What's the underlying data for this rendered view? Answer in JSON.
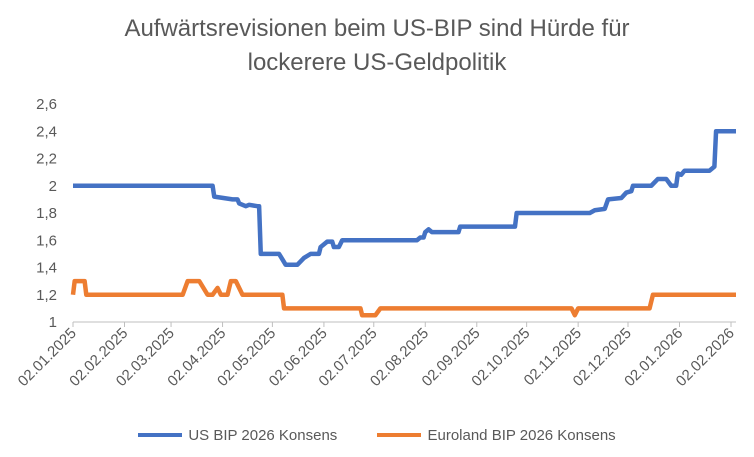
{
  "chart_data": {
    "type": "line",
    "title_lines": [
      "Aufwärtsrevisionen beim US-BIP sind Hürde für",
      "lockerere US-Geldpolitik"
    ],
    "xlabel": "",
    "ylabel": "",
    "x_range": [
      "2025-01-02",
      "2026-02-05"
    ],
    "ylim": [
      1,
      2.6
    ],
    "y_ticks": [
      1,
      1.2,
      1.4,
      1.6,
      1.8,
      2,
      2.2,
      2.4,
      2.6
    ],
    "y_tick_labels": [
      "1",
      "1,2",
      "1,4",
      "1,6",
      "1,8",
      "2",
      "2,2",
      "2,4",
      "2,6"
    ],
    "x_ticks": [
      "2025-01-02",
      "2025-02-02",
      "2025-03-02",
      "2025-04-02",
      "2025-05-02",
      "2025-06-02",
      "2025-07-02",
      "2025-08-02",
      "2025-09-02",
      "2025-10-02",
      "2025-11-02",
      "2025-12-02",
      "2026-01-02",
      "2026-02-02"
    ],
    "x_tick_labels": [
      "02.01.2025",
      "02.02.2025",
      "02.03.2025",
      "02.04.2025",
      "02.05.2025",
      "02.06.2025",
      "02.07.2025",
      "02.08.2025",
      "02.09.2025",
      "02.10.2025",
      "02.11.2025",
      "02.12.2025",
      "02.01.2026",
      "02.02.2026"
    ],
    "grid": false,
    "legend_position": "bottom",
    "series": [
      {
        "name": "US BIP 2026 Konsens",
        "color": "#4472C4",
        "points": [
          [
            "2025-01-02",
            2.0
          ],
          [
            "2025-03-27",
            2.0
          ],
          [
            "2025-03-28",
            1.92
          ],
          [
            "2025-04-08",
            1.9
          ],
          [
            "2025-04-11",
            1.9
          ],
          [
            "2025-04-12",
            1.87
          ],
          [
            "2025-04-16",
            1.85
          ],
          [
            "2025-04-18",
            1.86
          ],
          [
            "2025-04-23",
            1.85
          ],
          [
            "2025-04-24",
            1.85
          ],
          [
            "2025-04-25",
            1.5
          ],
          [
            "2025-05-06",
            1.5
          ],
          [
            "2025-05-08",
            1.46
          ],
          [
            "2025-05-10",
            1.42
          ],
          [
            "2025-05-17",
            1.42
          ],
          [
            "2025-05-21",
            1.47
          ],
          [
            "2025-05-25",
            1.5
          ],
          [
            "2025-05-30",
            1.5
          ],
          [
            "2025-05-31",
            1.55
          ],
          [
            "2025-06-04",
            1.59
          ],
          [
            "2025-06-07",
            1.59
          ],
          [
            "2025-06-08",
            1.55
          ],
          [
            "2025-06-11",
            1.55
          ],
          [
            "2025-06-13",
            1.6
          ],
          [
            "2025-07-28",
            1.6
          ],
          [
            "2025-07-30",
            1.62
          ],
          [
            "2025-08-01",
            1.62
          ],
          [
            "2025-08-02",
            1.66
          ],
          [
            "2025-08-04",
            1.68
          ],
          [
            "2025-08-06",
            1.66
          ],
          [
            "2025-08-22",
            1.66
          ],
          [
            "2025-08-23",
            1.7
          ],
          [
            "2025-09-25",
            1.7
          ],
          [
            "2025-09-26",
            1.8
          ],
          [
            "2025-11-09",
            1.8
          ],
          [
            "2025-11-12",
            1.82
          ],
          [
            "2025-11-18",
            1.83
          ],
          [
            "2025-11-20",
            1.9
          ],
          [
            "2025-11-28",
            1.91
          ],
          [
            "2025-12-01",
            1.95
          ],
          [
            "2025-12-04",
            1.96
          ],
          [
            "2025-12-05",
            2.0
          ],
          [
            "2025-12-16",
            2.0
          ],
          [
            "2025-12-20",
            2.05
          ],
          [
            "2025-12-25",
            2.05
          ],
          [
            "2025-12-28",
            2.0
          ],
          [
            "2025-12-31",
            2.0
          ],
          [
            "2026-01-01",
            2.09
          ],
          [
            "2026-01-03",
            2.08
          ],
          [
            "2026-01-05",
            2.11
          ],
          [
            "2026-01-20",
            2.11
          ],
          [
            "2026-01-23",
            2.14
          ],
          [
            "2026-01-24",
            2.4
          ],
          [
            "2026-02-05",
            2.4
          ]
        ]
      },
      {
        "name": "Euroland BIP 2026 Konsens",
        "color": "#ED7D31",
        "points": [
          [
            "2025-01-02",
            1.2
          ],
          [
            "2025-01-03",
            1.3
          ],
          [
            "2025-01-09",
            1.3
          ],
          [
            "2025-01-10",
            1.2
          ],
          [
            "2025-03-09",
            1.2
          ],
          [
            "2025-03-12",
            1.3
          ],
          [
            "2025-03-19",
            1.3
          ],
          [
            "2025-03-24",
            1.2
          ],
          [
            "2025-03-27",
            1.2
          ],
          [
            "2025-03-30",
            1.25
          ],
          [
            "2025-04-01",
            1.2
          ],
          [
            "2025-04-05",
            1.2
          ],
          [
            "2025-04-07",
            1.3
          ],
          [
            "2025-04-10",
            1.3
          ],
          [
            "2025-04-14",
            1.2
          ],
          [
            "2025-05-08",
            1.2
          ],
          [
            "2025-05-09",
            1.1
          ],
          [
            "2025-06-24",
            1.1
          ],
          [
            "2025-06-25",
            1.05
          ],
          [
            "2025-07-03",
            1.05
          ],
          [
            "2025-07-06",
            1.1
          ],
          [
            "2025-10-29",
            1.1
          ],
          [
            "2025-10-31",
            1.05
          ],
          [
            "2025-11-02",
            1.1
          ],
          [
            "2025-12-15",
            1.1
          ],
          [
            "2025-12-17",
            1.2
          ],
          [
            "2026-02-05",
            1.2
          ]
        ]
      }
    ]
  }
}
